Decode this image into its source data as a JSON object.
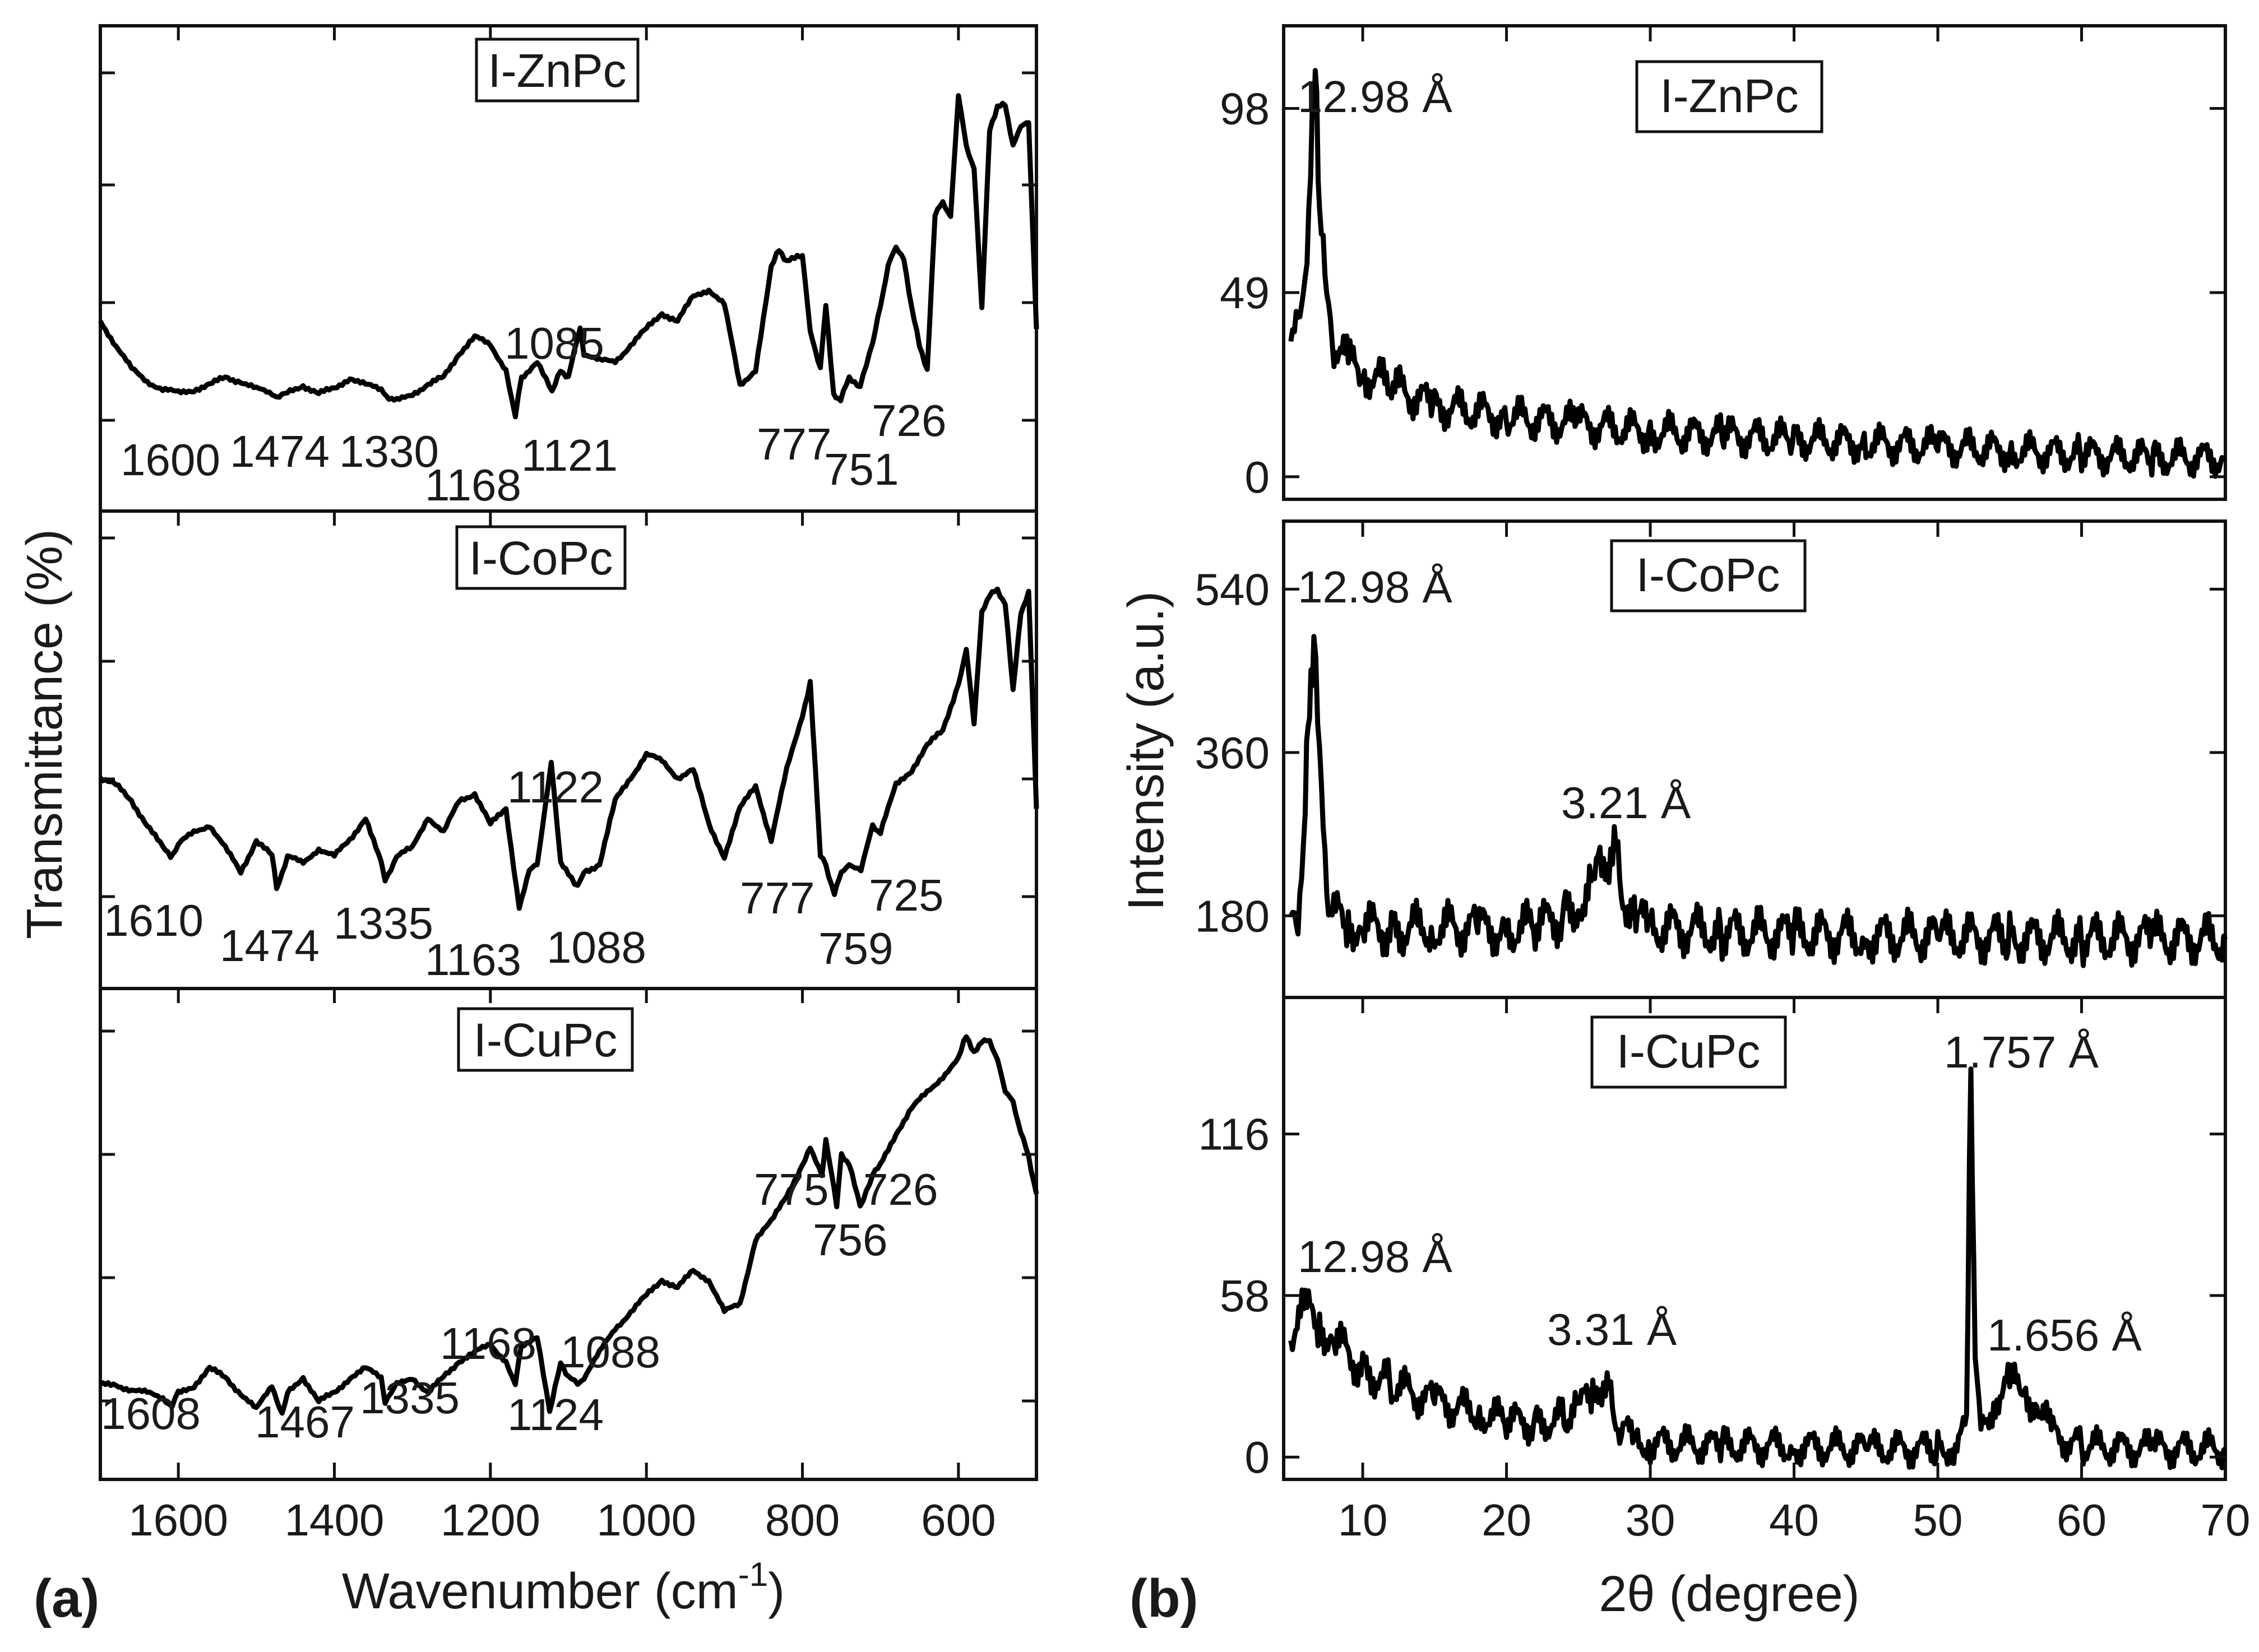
{
  "figure": {
    "panel_a_letter": "(a)",
    "panel_b_letter": "(b)"
  },
  "chart_data": [
    {
      "type": "line",
      "panel": "(a)",
      "title": "",
      "xlabel": "Wavenumber (cm",
      "xlabel_sup": "-1",
      "xlabel_end": ")",
      "ylabel": "Transmittance (%)",
      "xlim": [
        1700,
        500
      ],
      "x_ticks": [
        1600,
        1400,
        1200,
        1000,
        800,
        600
      ],
      "x_tick_labels": [
        "1600",
        "1400",
        "1200",
        "1000",
        "800",
        "600"
      ],
      "subplots": [
        {
          "name": "I-ZnPc",
          "ylim": [
            0,
            100
          ],
          "x": [
            1700,
            1680,
            1660,
            1640,
            1620,
            1600,
            1580,
            1560,
            1540,
            1520,
            1500,
            1480,
            1474,
            1460,
            1440,
            1420,
            1400,
            1380,
            1360,
            1340,
            1330,
            1320,
            1300,
            1280,
            1260,
            1240,
            1220,
            1200,
            1180,
            1168,
            1160,
            1140,
            1121,
            1110,
            1100,
            1085,
            1080,
            1060,
            1040,
            1020,
            1000,
            980,
            960,
            940,
            920,
            900,
            880,
            860,
            840,
            830,
            820,
            800,
            790,
            777,
            770,
            760,
            751,
            740,
            726,
            710,
            700,
            690,
            680,
            670,
            660,
            650,
            640,
            630,
            620,
            610,
            600,
            590,
            580,
            570,
            560,
            550,
            540,
            530,
            520,
            510,
            500
          ],
          "y": [
            32,
            26,
            20,
            17,
            15,
            14,
            15,
            16,
            18,
            17,
            15,
            14,
            13,
            14,
            16,
            14,
            15,
            18,
            16,
            15,
            13,
            12,
            14,
            16,
            18,
            24,
            28,
            26,
            20,
            8,
            18,
            22,
            14,
            20,
            18,
            30,
            24,
            22,
            22,
            26,
            30,
            34,
            32,
            38,
            40,
            36,
            16,
            20,
            45,
            50,
            47,
            48,
            30,
            20,
            36,
            14,
            12,
            18,
            16,
            26,
            36,
            46,
            50,
            48,
            35,
            26,
            20,
            58,
            62,
            58,
            88,
            76,
            70,
            35,
            80,
            85,
            86,
            76,
            80,
            82,
            30
          ]
        },
        {
          "name": "I-CoPc",
          "ylim": [
            0,
            100
          ],
          "x": [
            1700,
            1680,
            1660,
            1640,
            1620,
            1610,
            1600,
            1580,
            1560,
            1540,
            1520,
            1500,
            1480,
            1474,
            1460,
            1440,
            1420,
            1400,
            1380,
            1360,
            1340,
            1335,
            1320,
            1300,
            1280,
            1260,
            1240,
            1220,
            1200,
            1180,
            1163,
            1150,
            1140,
            1122,
            1110,
            1100,
            1088,
            1080,
            1060,
            1040,
            1020,
            1000,
            980,
            960,
            940,
            920,
            900,
            880,
            860,
            840,
            820,
            800,
            790,
            777,
            770,
            759,
            750,
            740,
            725,
            710,
            700,
            680,
            660,
            640,
            620,
            600,
            590,
            580,
            570,
            560,
            550,
            540,
            530,
            520,
            510,
            500
          ],
          "y": [
            38,
            36,
            32,
            26,
            20,
            18,
            21,
            24,
            26,
            20,
            14,
            22,
            18,
            10,
            18,
            16,
            20,
            18,
            22,
            28,
            16,
            12,
            18,
            20,
            28,
            24,
            32,
            34,
            26,
            30,
            5,
            14,
            16,
            42,
            16,
            14,
            10,
            14,
            16,
            32,
            38,
            44,
            42,
            38,
            40,
            26,
            18,
            30,
            36,
            22,
            40,
            54,
            62,
            18,
            16,
            8,
            14,
            16,
            14,
            26,
            24,
            36,
            40,
            46,
            50,
            62,
            70,
            52,
            80,
            84,
            86,
            82,
            60,
            80,
            85,
            30
          ]
        },
        {
          "name": "I-CuPc",
          "ylim": [
            0,
            100
          ],
          "x": [
            1700,
            1680,
            1660,
            1640,
            1620,
            1608,
            1600,
            1580,
            1560,
            1540,
            1520,
            1500,
            1480,
            1467,
            1460,
            1440,
            1420,
            1400,
            1380,
            1360,
            1340,
            1335,
            1320,
            1300,
            1280,
            1260,
            1240,
            1220,
            1200,
            1180,
            1168,
            1160,
            1140,
            1124,
            1110,
            1100,
            1088,
            1080,
            1060,
            1040,
            1020,
            1000,
            980,
            960,
            940,
            920,
            900,
            880,
            860,
            840,
            820,
            800,
            790,
            775,
            770,
            756,
            750,
            740,
            726,
            710,
            700,
            680,
            660,
            640,
            620,
            600,
            590,
            580,
            570,
            560,
            550,
            540,
            530,
            520,
            510,
            500
          ],
          "y": [
            8,
            8,
            7,
            6,
            5,
            3,
            6,
            8,
            12,
            10,
            6,
            2,
            8,
            1,
            6,
            10,
            4,
            6,
            10,
            12,
            10,
            4,
            8,
            10,
            6,
            10,
            14,
            16,
            18,
            14,
            8,
            18,
            20,
            1,
            14,
            10,
            8,
            10,
            16,
            22,
            26,
            30,
            34,
            32,
            36,
            34,
            26,
            28,
            44,
            48,
            55,
            62,
            66,
            60,
            68,
            52,
            65,
            62,
            52,
            60,
            62,
            70,
            76,
            80,
            84,
            88,
            94,
            90,
            92,
            93,
            88,
            80,
            78,
            70,
            64,
            55
          ]
        }
      ],
      "annotations": [
        {
          "subplot": "I-ZnPc",
          "labels": [
            "1600",
            "1474",
            "1330",
            "1168",
            "1121",
            "1085",
            "777",
            "751",
            "726"
          ]
        },
        {
          "subplot": "I-CoPc",
          "labels": [
            "1610",
            "1474",
            "1335",
            "1163",
            "1088",
            "1122",
            "777",
            "759",
            "725"
          ]
        },
        {
          "subplot": "I-CuPc",
          "labels": [
            "1608",
            "1467",
            "1335",
            "1124",
            "1168",
            "1088",
            "775",
            "756",
            "726"
          ]
        }
      ]
    },
    {
      "type": "line",
      "panel": "(b)",
      "title": "",
      "xlabel": "2θ (degree)",
      "ylabel": "Intensity (a.u.)",
      "xlim": [
        4.5,
        70
      ],
      "x_ticks": [
        10,
        20,
        30,
        40,
        50,
        60,
        70
      ],
      "x_tick_labels": [
        "10",
        "20",
        "30",
        "40",
        "50",
        "60",
        "70"
      ],
      "subplots": [
        {
          "name": "I-ZnPc",
          "ylim": [
            -6,
            120
          ],
          "y_ticks": [
            0,
            49,
            98
          ],
          "y_tick_labels": [
            "0",
            "49",
            "98"
          ],
          "x": [
            5,
            5.5,
            6,
            6.5,
            6.8,
            7,
            7.5,
            8,
            9,
            10,
            12,
            15,
            20,
            25,
            30,
            35,
            40,
            45,
            50,
            55,
            60,
            65,
            70
          ],
          "y": [
            36,
            38,
            55,
            90,
            102,
            72,
            46,
            36,
            30,
            28,
            24,
            19,
            16,
            14,
            12,
            11,
            10,
            9,
            8,
            7,
            6,
            5,
            5
          ],
          "labels": [
            "12.98 Å"
          ]
        },
        {
          "name": "I-CoPc",
          "ylim": [
            90,
            615
          ],
          "y_ticks": [
            180,
            360,
            540
          ],
          "y_tick_labels": [
            "180",
            "360",
            "540"
          ],
          "x": [
            5,
            5.5,
            6,
            6.3,
            6.6,
            7,
            7.5,
            8,
            9,
            10,
            12,
            15,
            18,
            20,
            22,
            24,
            25,
            26,
            26.5,
            27,
            27.5,
            28,
            29,
            30,
            35,
            40,
            45,
            50,
            55,
            60,
            65,
            70
          ],
          "y": [
            170,
            190,
            290,
            420,
            510,
            340,
            215,
            180,
            172,
            168,
            165,
            168,
            166,
            165,
            168,
            180,
            195,
            215,
            230,
            245,
            252,
            210,
            175,
            168,
            162,
            160,
            158,
            157,
            156,
            155,
            155,
            154
          ],
          "labels": [
            "12.98 Å",
            "3.21 Å"
          ]
        },
        {
          "name": "I-CuPc",
          "ylim": [
            -8,
            165
          ],
          "y_ticks": [
            0,
            58,
            116
          ],
          "y_tick_labels": [
            "0",
            "58",
            "116"
          ],
          "x": [
            5,
            6,
            7,
            8,
            10,
            12,
            15,
            18,
            20,
            22,
            24,
            25,
            26,
            26.5,
            27,
            27.5,
            28,
            29,
            30,
            35,
            40,
            45,
            50,
            51,
            52,
            52.3,
            52.6,
            53,
            54,
            55,
            56,
            57,
            58,
            60,
            65,
            70
          ],
          "y": [
            45,
            52,
            48,
            42,
            32,
            26,
            20,
            16,
            13,
            12,
            14,
            18,
            22,
            26,
            24,
            16,
            10,
            6,
            5,
            4,
            4,
            3,
            3,
            4,
            10,
            138,
            40,
            8,
            22,
            26,
            24,
            18,
            8,
            4,
            3,
            3
          ],
          "labels": [
            "12.98 Å",
            "3.31 Å",
            "1.757 Å",
            "1.656 Å"
          ]
        }
      ]
    }
  ]
}
